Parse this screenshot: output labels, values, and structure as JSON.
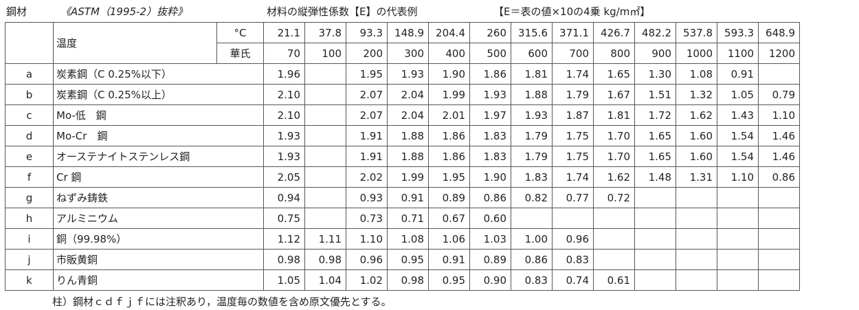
{
  "header": {
    "steel_label": "鋼材",
    "source": "《ASTM（1995-2）抜粋》",
    "title": "材料の縦弾性係数【E】の代表例",
    "formula": "【E＝表の値×10の4乗 kg/m㎡】"
  },
  "table": {
    "temp_label": "温度",
    "celsius_label": "°C",
    "fahrenheit_label": "華氏",
    "celsius": [
      "21.1",
      "37.8",
      "93.3",
      "148.9",
      "204.4",
      "260",
      "315.6",
      "371.1",
      "426.7",
      "482.2",
      "537.8",
      "593.3",
      "648.9"
    ],
    "fahrenheit": [
      "70",
      "100",
      "200",
      "300",
      "400",
      "500",
      "600",
      "700",
      "800",
      "900",
      "1000",
      "1100",
      "1200"
    ],
    "rows": [
      {
        "id": "a",
        "name": "炭素鋼（C 0.25%以下）",
        "values": [
          "1.96",
          "",
          "1.95",
          "1.93",
          "1.90",
          "1.86",
          "1.81",
          "1.74",
          "1.65",
          "1.30",
          "1.08",
          "0.91",
          ""
        ]
      },
      {
        "id": "b",
        "name": "炭素鋼（C 0.25%以上）",
        "values": [
          "2.10",
          "",
          "2.07",
          "2.04",
          "1.99",
          "1.93",
          "1.88",
          "1.79",
          "1.67",
          "1.51",
          "1.32",
          "1.05",
          "0.79"
        ]
      },
      {
        "id": "c",
        "name": "Mo-低　鋼",
        "values": [
          "2.10",
          "",
          "2.07",
          "2.04",
          "2.01",
          "1.97",
          "1.93",
          "1.87",
          "1.81",
          "1.72",
          "1.62",
          "1.43",
          "1.10"
        ]
      },
      {
        "id": "d",
        "name": "Mo-Cr　鋼",
        "values": [
          "1.93",
          "",
          "1.91",
          "1.88",
          "1.86",
          "1.83",
          "1.79",
          "1.75",
          "1.70",
          "1.65",
          "1.60",
          "1.54",
          "1.46"
        ]
      },
      {
        "id": "e",
        "name": "オーステナイトステンレス鋼",
        "values": [
          "1.93",
          "",
          "1.91",
          "1.88",
          "1.86",
          "1.83",
          "1.79",
          "1.75",
          "1.70",
          "1.65",
          "1.60",
          "1.54",
          "1.46"
        ]
      },
      {
        "id": "f",
        "name": "Cr 鋼",
        "values": [
          "2.05",
          "",
          "2.02",
          "1.99",
          "1.95",
          "1.90",
          "1.83",
          "1.74",
          "1.62",
          "1.48",
          "1.31",
          "1.10",
          "0.86"
        ]
      },
      {
        "id": "g",
        "name": "ねずみ鋳鉄",
        "values": [
          "0.94",
          "",
          "0.93",
          "0.91",
          "0.89",
          "0.86",
          "0.82",
          "0.77",
          "0.72",
          "",
          "",
          "",
          ""
        ]
      },
      {
        "id": "h",
        "name": "アルミニウム",
        "values": [
          "0.75",
          "",
          "0.73",
          "0.71",
          "0.67",
          "0.60",
          "",
          "",
          "",
          "",
          "",
          "",
          ""
        ]
      },
      {
        "id": "i",
        "name": "銅（99.98%）",
        "values": [
          "1.12",
          "1.11",
          "1.10",
          "1.08",
          "1.06",
          "1.03",
          "1.00",
          "0.96",
          "",
          "",
          "",
          "",
          ""
        ]
      },
      {
        "id": "j",
        "name": "市販黄銅",
        "values": [
          "0.98",
          "0.98",
          "0.96",
          "0.95",
          "0.91",
          "0.89",
          "0.86",
          "0.83",
          "",
          "",
          "",
          "",
          ""
        ]
      },
      {
        "id": "k",
        "name": "りん青銅",
        "values": [
          "1.05",
          "1.04",
          "1.02",
          "0.98",
          "0.95",
          "0.90",
          "0.83",
          "0.74",
          "0.61",
          "",
          "",
          "",
          ""
        ]
      }
    ]
  },
  "note": "柱）鋼材ｃｄｆｊｆには注釈あり，温度毎の数値を含め原文優先とする。"
}
